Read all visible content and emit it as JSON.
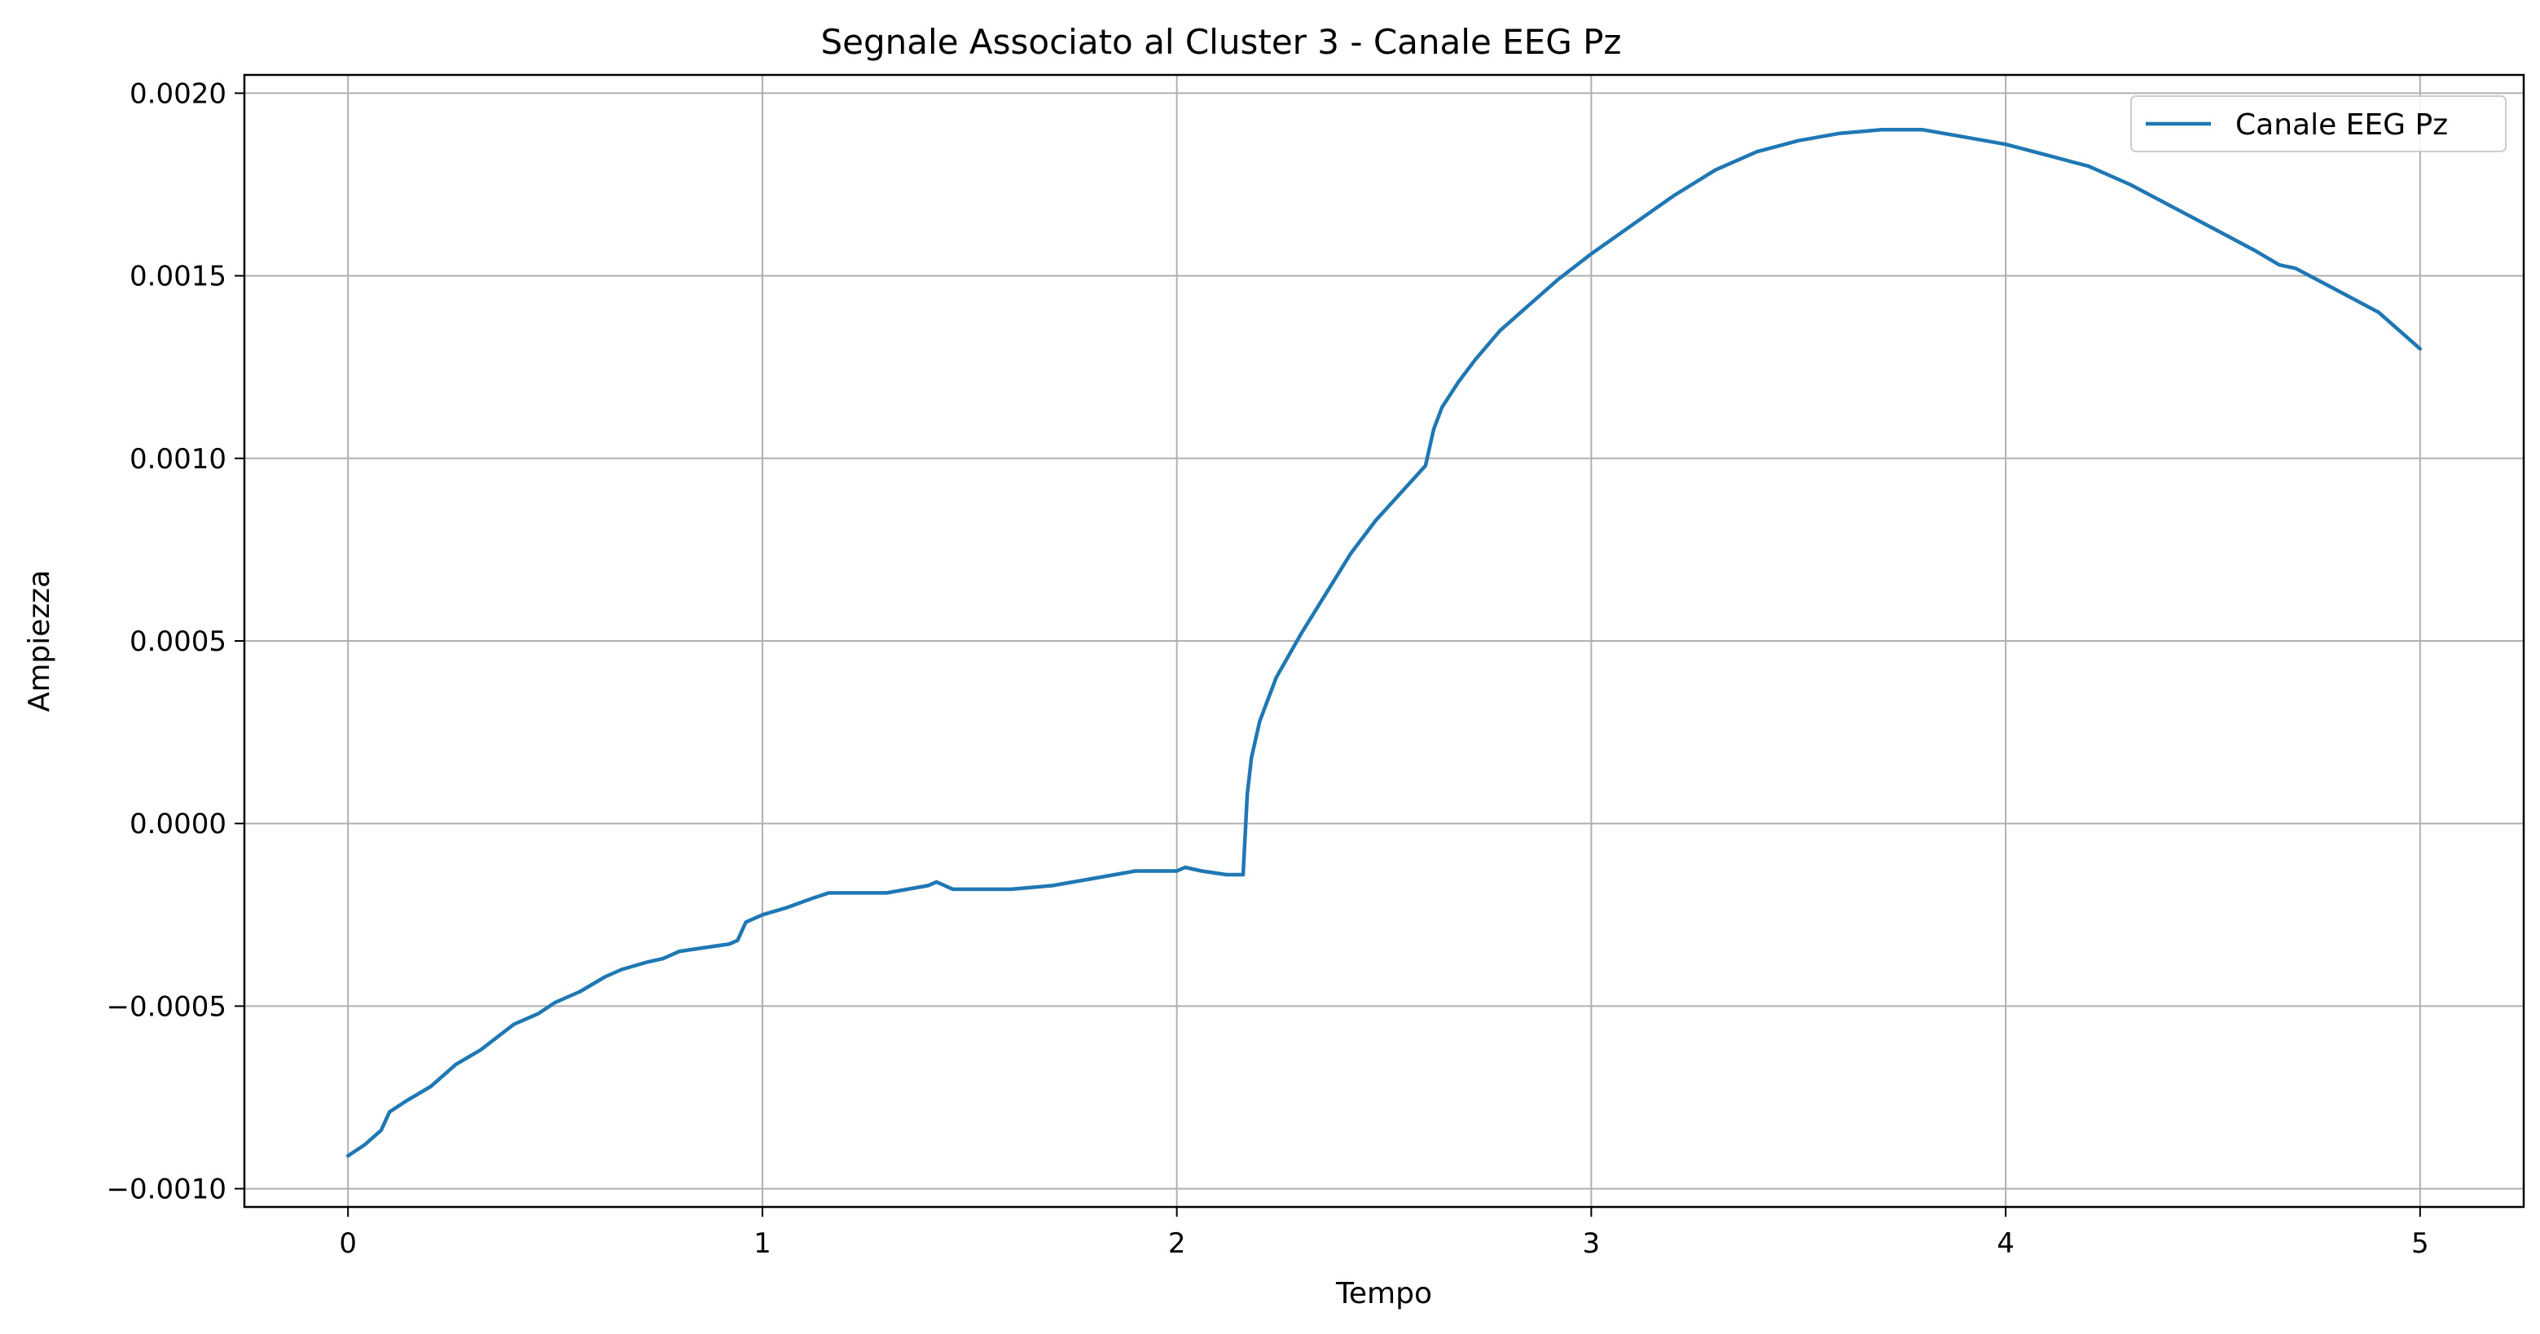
{
  "chart_data": {
    "type": "line",
    "title": "Segnale Associato al Cluster 3 - Canale EEG Pz",
    "xlabel": "Tempo",
    "ylabel": "Ampiezza",
    "xlim": [
      -0.25,
      5.25
    ],
    "ylim": [
      -0.00105,
      0.00205
    ],
    "xticks": [
      0,
      1,
      2,
      3,
      4,
      5
    ],
    "xtick_labels": [
      "0",
      "1",
      "2",
      "3",
      "4",
      "5"
    ],
    "yticks": [
      -0.001,
      -0.0005,
      0.0,
      0.0005,
      0.001,
      0.0015,
      0.002
    ],
    "ytick_labels": [
      "−0.0010",
      "−0.0005",
      "0.0000",
      "0.0005",
      "0.0010",
      "0.0015",
      "0.0020"
    ],
    "grid": true,
    "legend_position": "top-right",
    "series": [
      {
        "name": "Canale EEG Pz",
        "color": "#1f77b4",
        "x": [
          0.0,
          0.04,
          0.08,
          0.1,
          0.14,
          0.2,
          0.26,
          0.32,
          0.4,
          0.46,
          0.5,
          0.56,
          0.62,
          0.66,
          0.72,
          0.76,
          0.8,
          0.86,
          0.92,
          0.94,
          0.96,
          1.0,
          1.06,
          1.12,
          1.16,
          1.2,
          1.3,
          1.4,
          1.42,
          1.46,
          1.6,
          1.7,
          1.8,
          1.9,
          2.0,
          2.02,
          2.06,
          2.12,
          2.16,
          2.17,
          2.18,
          2.2,
          2.24,
          2.3,
          2.36,
          2.42,
          2.48,
          2.52,
          2.56,
          2.6,
          2.62,
          2.64,
          2.68,
          2.72,
          2.78,
          2.86,
          2.92,
          3.0,
          3.1,
          3.2,
          3.3,
          3.4,
          3.5,
          3.6,
          3.7,
          3.8,
          3.9,
          4.0,
          4.1,
          4.2,
          4.3,
          4.4,
          4.5,
          4.6,
          4.66,
          4.7,
          4.8,
          4.9,
          5.0
        ],
        "y": [
          -0.00091,
          -0.00088,
          -0.00084,
          -0.00079,
          -0.00076,
          -0.00072,
          -0.00066,
          -0.00062,
          -0.00055,
          -0.00052,
          -0.00049,
          -0.00046,
          -0.00042,
          -0.0004,
          -0.00038,
          -0.00037,
          -0.00035,
          -0.00034,
          -0.00033,
          -0.00032,
          -0.00027,
          -0.00025,
          -0.00023,
          -0.000205,
          -0.00019,
          -0.00019,
          -0.00019,
          -0.00017,
          -0.00016,
          -0.00018,
          -0.00018,
          -0.00017,
          -0.00015,
          -0.00013,
          -0.00013,
          -0.00012,
          -0.00013,
          -0.00014,
          -0.00014,
          8e-05,
          0.00018,
          0.00028,
          0.0004,
          0.00052,
          0.00063,
          0.00074,
          0.00083,
          0.00088,
          0.00093,
          0.00098,
          0.00108,
          0.00114,
          0.00121,
          0.00127,
          0.00135,
          0.00143,
          0.00149,
          0.00156,
          0.00164,
          0.00172,
          0.00179,
          0.00184,
          0.00187,
          0.00189,
          0.0019,
          0.0019,
          0.00188,
          0.00186,
          0.00183,
          0.0018,
          0.00175,
          0.00169,
          0.00163,
          0.00157,
          0.00153,
          0.00152,
          0.00146,
          0.0014,
          0.0013
        ]
      }
    ]
  }
}
